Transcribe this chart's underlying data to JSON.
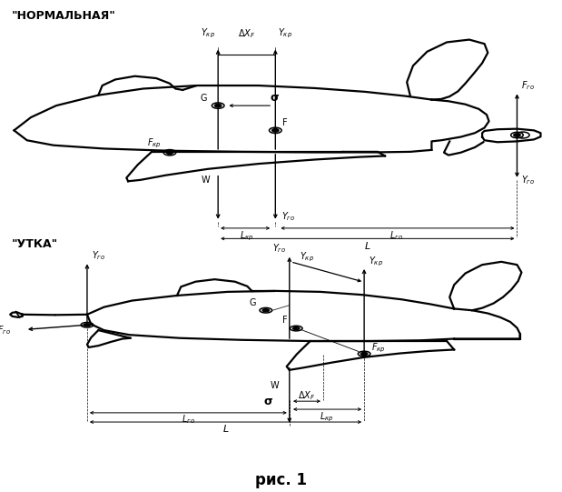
{
  "bg_color": "#ffffff",
  "lc": "black",
  "lw_body": 1.6,
  "lw_arrow": 1.0,
  "lw_dim": 0.7,
  "fs_label": 9,
  "fs_text": 7,
  "fs_caption": 12,
  "label_normal": "\"НОРМАЛЬНАЯ\"",
  "label_utka": "\"УТКА\"",
  "caption": "рис. 1"
}
